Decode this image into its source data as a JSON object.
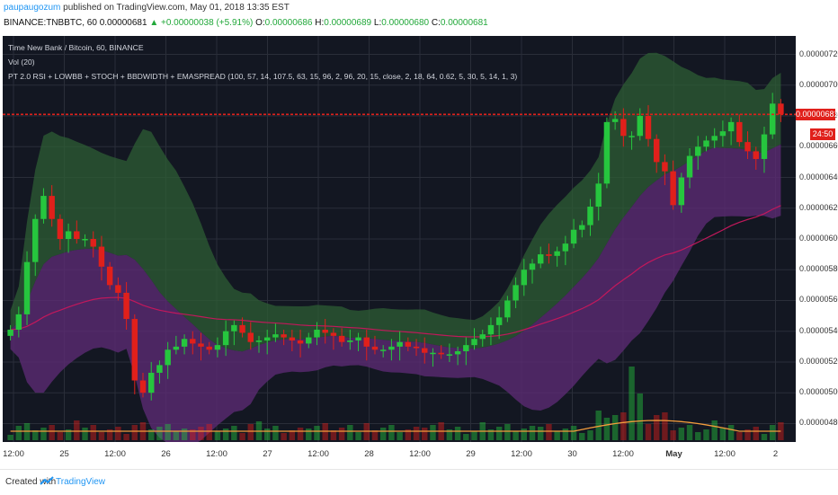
{
  "header": {
    "user": "paupaugozum",
    "published": "published on TradingView.com, May 01, 2018 13:35 EST",
    "symbol_line": "BINANCE:TNBBTC, 60  0.00000681",
    "change": "▲ +0.00000038 (+5.91%)",
    "o_label": "O:",
    "o_val": "0.00000686",
    "h_label": "H:",
    "h_val": "0.00000689",
    "l_label": "L:",
    "l_val": "0.00000680",
    "c_label": "C:",
    "c_val": "0.00000681"
  },
  "legend": {
    "line1": "Time New Bank / Bitcoin, 60, BINANCE",
    "line2": "Vol (20)",
    "line3": "PT 2.0 RSI + LOWBB + STOCH + BBDWIDTH + EMASPREAD (100, 57, 14, 107.5, 63, 15, 96, 2, 96, 20, 15, close, 2, 18, 64, 0.62, 5, 30, 5, 14, 1, 3)"
  },
  "price_tag": "0.00000681",
  "countdown": "24:50",
  "footer": {
    "created": "Created with",
    "brand": "TradingView"
  },
  "colors": {
    "up": "#26c63e",
    "down": "#e0201b",
    "band_green": "#2e5e34",
    "band_purple": "#5b2a73",
    "ema": "#c2185b",
    "vol_ma": "#f39c3c",
    "price_line": "#e0201b",
    "brand": "#2196f3"
  },
  "chart_data": {
    "type": "candlestick",
    "title": "Time New Bank / Bitcoin, 60, BINANCE",
    "y_ticks": [
      "0.00000720",
      "0.00000700",
      "0.00000680",
      "0.00000660",
      "0.00000640",
      "0.00000620",
      "0.00000600",
      "0.00000580",
      "0.00000560",
      "0.00000540",
      "0.00000520",
      "0.00000500",
      "0.00000480"
    ],
    "ylim": [
      4.68e-06,
      7.32e-06
    ],
    "x_ticks": [
      "12:00",
      "25",
      "12:00",
      "26",
      "12:00",
      "27",
      "12:00",
      "28",
      "12:00",
      "29",
      "12:00",
      "30",
      "12:00",
      "May",
      "12:00",
      "2"
    ],
    "last_price": 6.81e-06,
    "close_series": [
      541,
      551,
      585,
      613,
      628,
      613,
      600,
      605,
      600,
      600,
      595,
      582,
      570,
      565,
      548,
      508,
      500,
      513,
      518,
      528,
      530,
      535,
      532,
      530,
      528,
      531,
      540,
      544,
      539,
      533,
      534,
      536,
      538,
      536,
      534,
      532,
      536,
      541,
      539,
      537,
      533,
      534,
      536,
      530,
      528,
      528,
      530,
      533,
      530,
      529,
      526,
      526,
      525,
      525,
      527,
      531,
      535,
      538,
      544,
      549,
      560,
      570,
      580,
      584,
      590,
      589,
      592,
      597,
      606,
      609,
      621,
      636,
      676,
      678,
      667,
      667,
      680,
      665,
      650,
      644,
      622,
      640,
      654,
      660,
      664,
      667,
      670,
      676,
      663,
      657,
      652,
      668,
      688,
      681
    ],
    "volume_pattern": "low and uniform, spike near May 01 00:00",
    "bands": "Bollinger-style upper (green) and lower (purple) envelopes around price"
  }
}
